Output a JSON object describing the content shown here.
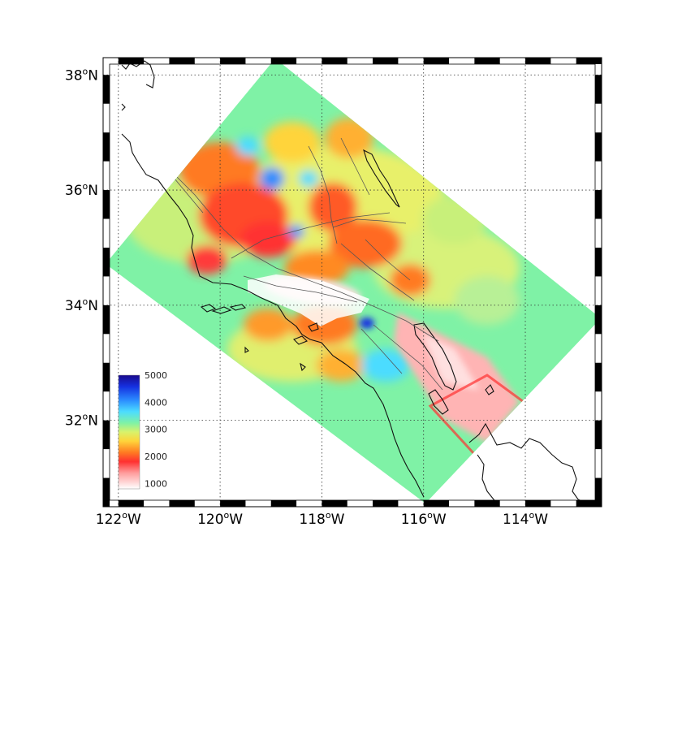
{
  "map": {
    "lon_range": [
      -122.3,
      -112.5
    ],
    "lat_range": [
      30.5,
      38.3
    ],
    "lon_ticks": [
      {
        "value": -122,
        "label": "122",
        "sup": "o",
        "hemi": "W"
      },
      {
        "value": -120,
        "label": "120",
        "sup": "o",
        "hemi": "W"
      },
      {
        "value": -118,
        "label": "118",
        "sup": "o",
        "hemi": "W"
      },
      {
        "value": -116,
        "label": "116",
        "sup": "o",
        "hemi": "W"
      },
      {
        "value": -114,
        "label": "114",
        "sup": "o",
        "hemi": "W"
      }
    ],
    "lat_ticks": [
      {
        "value": 38,
        "label": "38",
        "sup": "o",
        "hemi": "N"
      },
      {
        "value": 36,
        "label": "36",
        "sup": "o",
        "hemi": "N"
      },
      {
        "value": 34,
        "label": "34",
        "sup": "o",
        "hemi": "N"
      },
      {
        "value": 32,
        "label": "32",
        "sup": "o",
        "hemi": "N"
      }
    ],
    "frame_style": "black-white alternating border",
    "grid": true,
    "field": "color-filled rotated rectangular model domain over Southern California",
    "colors": {
      "background_field": "#7ff2a6",
      "land_coast": "#111111",
      "fault_lines": "#555555"
    }
  },
  "colorbar": {
    "ticks": [
      "5000",
      "4000",
      "3000",
      "2000",
      "1000"
    ],
    "min": 800,
    "max": 5000,
    "colormap": "jet-like (white-red-yellow-green-cyan-blue)"
  }
}
